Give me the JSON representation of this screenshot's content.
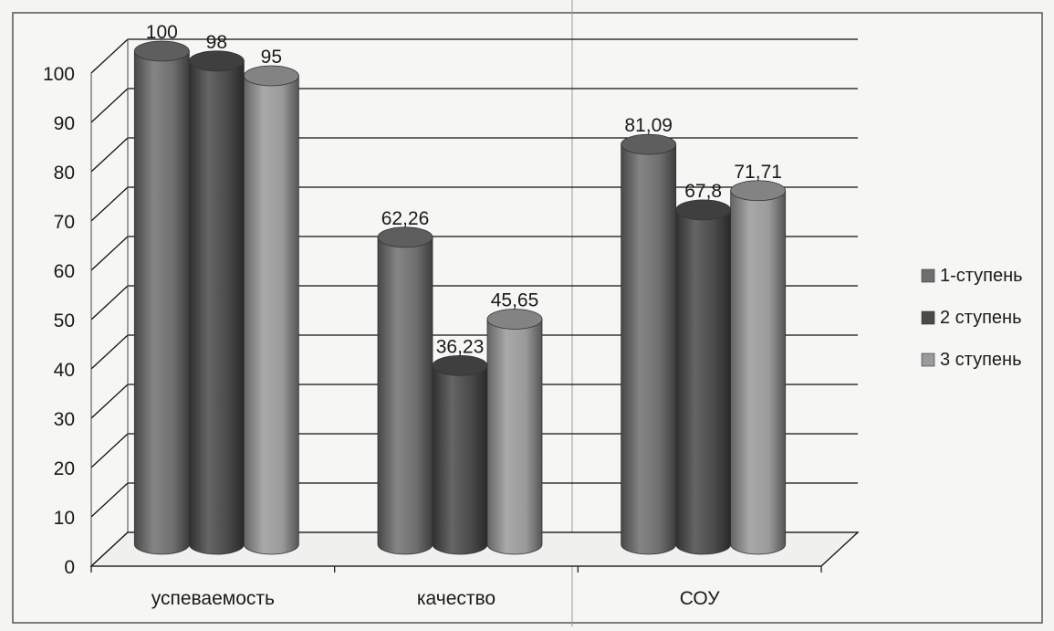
{
  "chart_data": {
    "type": "bar",
    "categories": [
      "успеваемость",
      "качество",
      "СОУ"
    ],
    "series": [
      {
        "name": "1-ступень",
        "values": [
          100,
          62.26,
          81.09
        ],
        "labels": [
          "100",
          "62,26",
          "81,09"
        ],
        "color": "#6f6f6f"
      },
      {
        "name": "2 ступень",
        "values": [
          98,
          36.23,
          67.8
        ],
        "labels": [
          "98",
          "36,23",
          "67,8"
        ],
        "color": "#4a4a4a"
      },
      {
        "name": "3 ступень",
        "values": [
          95,
          45.65,
          71.71
        ],
        "labels": [
          "95",
          "45,65",
          "71,71"
        ],
        "color": "#9a9a9a"
      }
    ],
    "ylim": [
      0,
      100
    ],
    "yticks": [
      0,
      10,
      20,
      30,
      40,
      50,
      60,
      70,
      80,
      90,
      100
    ],
    "grid": true,
    "legend_position": "right",
    "style": "3d-cylinder"
  }
}
